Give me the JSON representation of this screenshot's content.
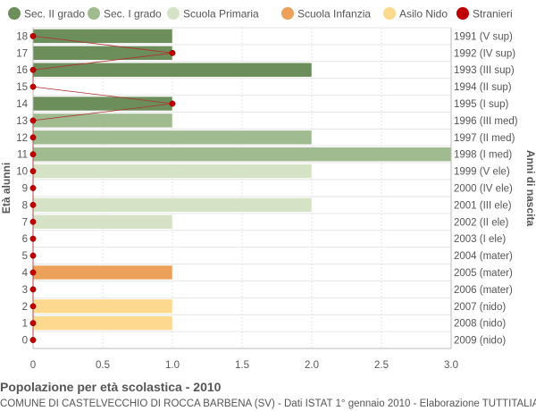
{
  "chart_data": {
    "type": "bar",
    "orientation": "horizontal",
    "title": "Popolazione per età scolastica - 2010",
    "subtitle": "COMUNE DI CASTELVECCHIO DI ROCCA BARBENA (SV) - Dati ISTAT 1° gennaio 2010 - Elaborazione TUTTITALIA.IT",
    "ylabel": "Età alunni",
    "ylabel_right": "Anni di nascita",
    "xlim": [
      0,
      3
    ],
    "x_ticks": [
      "0",
      "0.5",
      "1.0",
      "1.5",
      "2.0",
      "2.5",
      "3.0"
    ],
    "grid": true,
    "legend_position": "top",
    "legend": [
      {
        "label": "Sec. II grado",
        "color": "#6b8e5a"
      },
      {
        "label": "Sec. I grado",
        "color": "#9fbb8f"
      },
      {
        "label": "Scuola Primaria",
        "color": "#d5e2c6"
      },
      {
        "label": "Scuola Infanzia",
        "color": "#eba15a"
      },
      {
        "label": "Asilo Nido",
        "color": "#fdd98f"
      },
      {
        "label": "Stranieri",
        "color": "#c00000"
      }
    ],
    "rows": [
      {
        "age": "18",
        "birth": "1991 (V sup)",
        "value": 1,
        "group": 0,
        "stranieri": 0
      },
      {
        "age": "17",
        "birth": "1992 (IV sup)",
        "value": 1,
        "group": 0,
        "stranieri": 1
      },
      {
        "age": "16",
        "birth": "1993 (III sup)",
        "value": 2,
        "group": 0,
        "stranieri": 0
      },
      {
        "age": "15",
        "birth": "1994 (II sup)",
        "value": 0,
        "group": 0,
        "stranieri": 0
      },
      {
        "age": "14",
        "birth": "1995 (I sup)",
        "value": 1,
        "group": 0,
        "stranieri": 1
      },
      {
        "age": "13",
        "birth": "1996 (III med)",
        "value": 1,
        "group": 1,
        "stranieri": 0
      },
      {
        "age": "12",
        "birth": "1997 (II med)",
        "value": 2,
        "group": 1,
        "stranieri": 0
      },
      {
        "age": "11",
        "birth": "1998 (I med)",
        "value": 3,
        "group": 1,
        "stranieri": 0
      },
      {
        "age": "10",
        "birth": "1999 (V ele)",
        "value": 2,
        "group": 2,
        "stranieri": 0
      },
      {
        "age": "9",
        "birth": "2000 (IV ele)",
        "value": 0,
        "group": 2,
        "stranieri": 0
      },
      {
        "age": "8",
        "birth": "2001 (III ele)",
        "value": 2,
        "group": 2,
        "stranieri": 0
      },
      {
        "age": "7",
        "birth": "2002 (II ele)",
        "value": 1,
        "group": 2,
        "stranieri": 0
      },
      {
        "age": "6",
        "birth": "2003 (I ele)",
        "value": 0,
        "group": 2,
        "stranieri": 0
      },
      {
        "age": "5",
        "birth": "2004 (mater)",
        "value": 0,
        "group": 3,
        "stranieri": 0
      },
      {
        "age": "4",
        "birth": "2005 (mater)",
        "value": 1,
        "group": 3,
        "stranieri": 0
      },
      {
        "age": "3",
        "birth": "2006 (mater)",
        "value": 0,
        "group": 3,
        "stranieri": 0
      },
      {
        "age": "2",
        "birth": "2007 (nido)",
        "value": 1,
        "group": 4,
        "stranieri": 0
      },
      {
        "age": "1",
        "birth": "2008 (nido)",
        "value": 1,
        "group": 4,
        "stranieri": 0
      },
      {
        "age": "0",
        "birth": "2009 (nido)",
        "value": 0,
        "group": 4,
        "stranieri": 0
      }
    ]
  }
}
